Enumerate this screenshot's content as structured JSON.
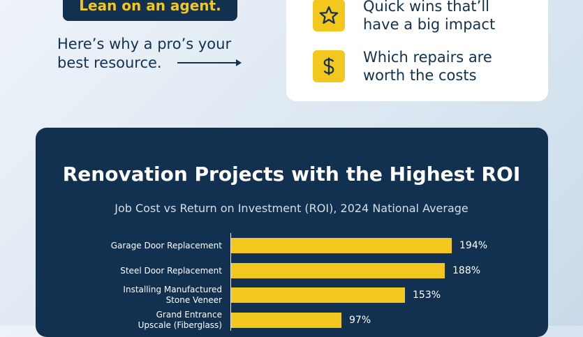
{
  "hero": {
    "pill_label": "Lean on an agent.",
    "why_line1": "Here’s why a pro’s your",
    "why_line2": "best resource."
  },
  "features": [
    {
      "icon": "star-icon",
      "line1": "Quick wins that’ll",
      "line2": "have a big impact"
    },
    {
      "icon": "dollar-icon",
      "line1": "Which repairs are",
      "line2": "worth the costs"
    }
  ],
  "colors": {
    "navy": "#12304f",
    "accent": "#f2c81e"
  },
  "chart_data": {
    "type": "bar",
    "orientation": "horizontal",
    "title": "Renovation Projects with the Highest ROI",
    "subtitle": "Job Cost vs Return on Investment (ROI), 2024 National Average",
    "categories": [
      [
        "Garage Door Replacement"
      ],
      [
        "Steel Door Replacement"
      ],
      [
        "Installing Manufactured",
        "Stone Veneer"
      ],
      [
        "Grand Entrance",
        "Upscale (Fiberglass)"
      ]
    ],
    "values": [
      194,
      188,
      153,
      97
    ],
    "value_labels": [
      "194%",
      "188%",
      "153%",
      "97%"
    ],
    "xlim": [
      0,
      200
    ]
  }
}
